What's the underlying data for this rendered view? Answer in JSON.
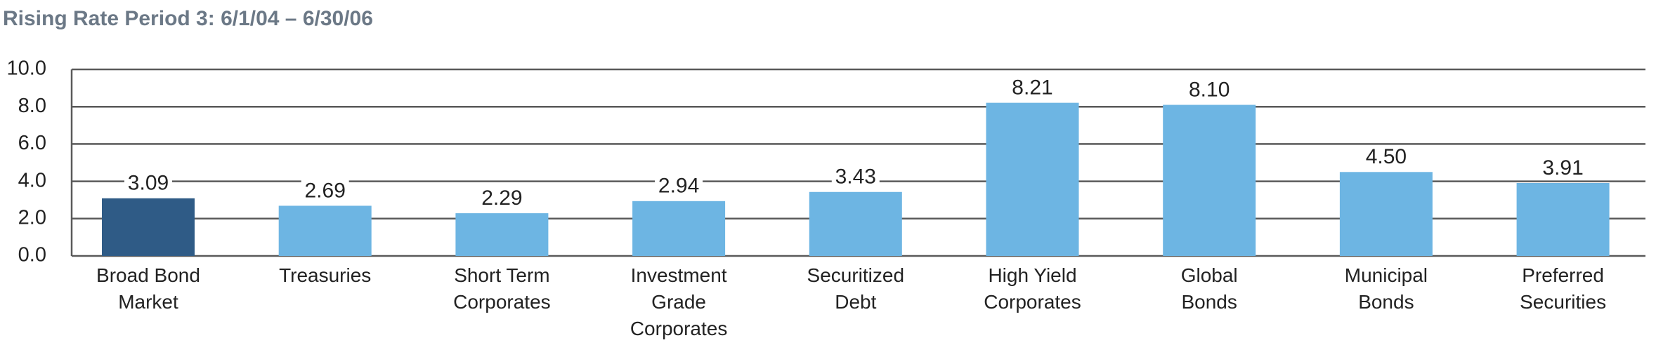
{
  "chart_data": {
    "type": "bar",
    "title": "Rising Rate Period 3: 6/1/04 – 6/30/06",
    "categories": [
      "Broad Bond\nMarket",
      "Treasuries",
      "Short Term\nCorporates",
      "Investment\nGrade\nCorporates",
      "Securitized\nDebt",
      "High Yield\nCorporates",
      "Global\nBonds",
      "Municipal\nBonds",
      "Preferred\nSecurities"
    ],
    "values": [
      3.09,
      2.69,
      2.29,
      2.94,
      3.43,
      8.21,
      8.1,
      4.5,
      3.91
    ],
    "value_labels": [
      "3.09",
      "2.69",
      "2.29",
      "2.94",
      "3.43",
      "8.21",
      "8.10",
      "4.50",
      "3.91"
    ],
    "colors": [
      "#2f5b86",
      "#6db5e3",
      "#6db5e3",
      "#6db5e3",
      "#6db5e3",
      "#6db5e3",
      "#6db5e3",
      "#6db5e3",
      "#6db5e3"
    ],
    "ylim": [
      0,
      10
    ],
    "yticks": [
      {
        "value": 0,
        "label": "0.0"
      },
      {
        "value": 2,
        "label": "2.0"
      },
      {
        "value": 4,
        "label": "4.0"
      },
      {
        "value": 6,
        "label": "6.0"
      },
      {
        "value": 8,
        "label": "8.0"
      },
      {
        "value": 10,
        "label": "10.0"
      }
    ],
    "grid": true
  }
}
